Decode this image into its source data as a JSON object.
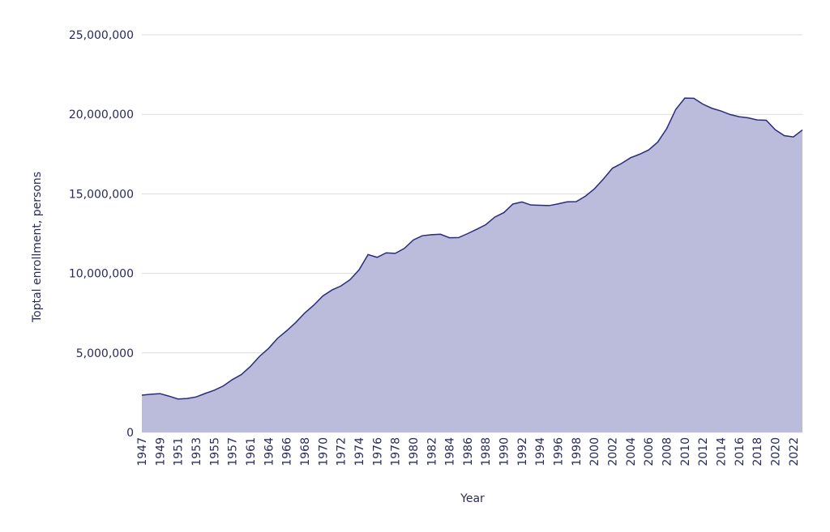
{
  "chart_data": {
    "type": "area",
    "xlabel": "Year",
    "ylabel": "Toptal enrollment, persons",
    "categories": [
      "1947",
      null,
      "1949",
      null,
      "1951",
      null,
      "1953",
      null,
      "1955",
      null,
      "1957",
      null,
      "1961",
      null,
      "1964",
      null,
      "1966",
      null,
      "1968",
      null,
      "1970",
      null,
      "1972",
      null,
      "1974",
      null,
      "1976",
      null,
      "1978",
      null,
      "1980",
      null,
      "1982",
      null,
      "1984",
      null,
      "1986",
      null,
      "1988",
      null,
      "1990",
      null,
      "1992",
      null,
      "1994",
      null,
      "1996",
      null,
      "1998",
      null,
      "2000",
      null,
      "2002",
      null,
      "2004",
      null,
      "2006",
      null,
      "2008",
      null,
      "2010",
      null,
      "2012",
      null,
      "2014",
      null,
      "2016",
      null,
      "2018",
      null,
      "2020",
      null,
      "2022",
      null
    ],
    "values": [
      2340000,
      2400000,
      2440000,
      2280000,
      2100000,
      2130000,
      2230000,
      2450000,
      2650000,
      2920000,
      3320000,
      3640000,
      4150000,
      4780000,
      5280000,
      5920000,
      6390000,
      6910000,
      7510000,
      8000000,
      8580000,
      8950000,
      9210000,
      9600000,
      10220000,
      11180000,
      11010000,
      11290000,
      11260000,
      11570000,
      12100000,
      12370000,
      12430000,
      12460000,
      12240000,
      12250000,
      12500000,
      12770000,
      13060000,
      13540000,
      13820000,
      14360000,
      14490000,
      14300000,
      14280000,
      14260000,
      14370000,
      14500000,
      14510000,
      14850000,
      15310000,
      15930000,
      16610000,
      16910000,
      17270000,
      17490000,
      17760000,
      18250000,
      19100000,
      20310000,
      21020000,
      21010000,
      20640000,
      20380000,
      20210000,
      19990000,
      19850000,
      19780000,
      19650000,
      19630000,
      19030000,
      18660000,
      18580000,
      19020000
    ],
    "color": "#bbbbdc",
    "line_color": "#2b2b7e",
    "ylim": [
      0,
      25000000
    ],
    "yticks": [
      0,
      {
        "value": 5000000,
        "label": "5,000,000"
      },
      {
        "value": 10000000,
        "label": "10,000,000"
      },
      {
        "value": 15000000,
        "label": "15,000,000"
      },
      {
        "value": 20000000,
        "label": "20,000,000"
      },
      {
        "value": 25000000,
        "label": "25,000,000"
      }
    ],
    "grid": true
  }
}
